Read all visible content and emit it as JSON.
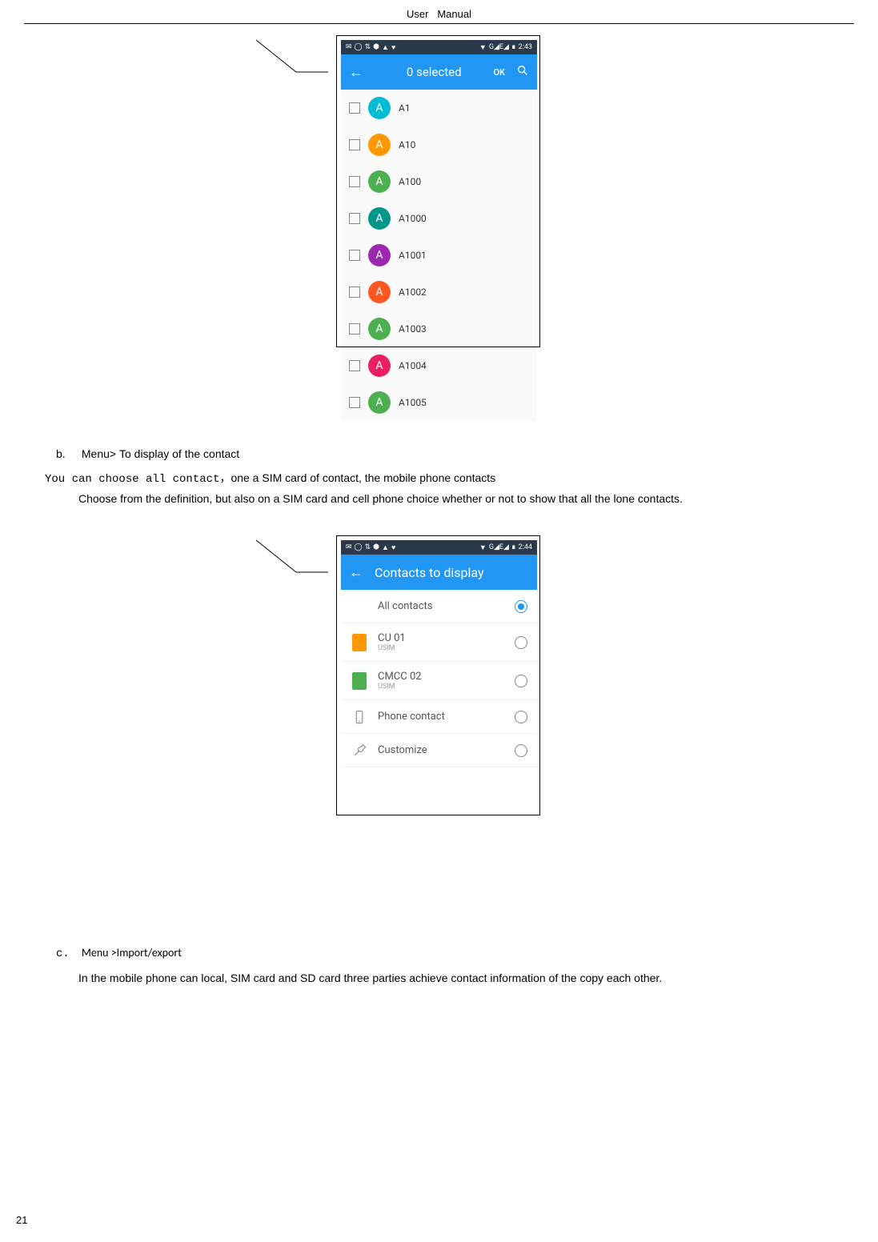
{
  "header": "User   Manual",
  "page_number": "21",
  "section_b": {
    "label": "b.",
    "title_prefix": "Menu> ",
    "title": "To display of the contact",
    "line1_mono": "You can choose all contact，",
    "line1_rest": "one a SIM card of contact, the mobile phone contacts",
    "line2": "Choose from the definition, but also on a SIM card and cell phone choice whether or not to show that all the lone contacts."
  },
  "section_c": {
    "label": "c.",
    "title": "Menu >Import/export",
    "body": "In the mobile phone can local, SIM card and SD card three parties achieve contact information of the copy each other."
  },
  "screenshot1": {
    "status_time": "2:43",
    "status_indicators": "G◢E◢",
    "app_bar_title": "0 selected",
    "ok_label": "OK",
    "contacts": [
      {
        "name": "A1",
        "color": "#00bcd4"
      },
      {
        "name": "A10",
        "color": "#ff9800"
      },
      {
        "name": "A100",
        "color": "#4caf50"
      },
      {
        "name": "A1000",
        "color": "#009688"
      },
      {
        "name": "A1001",
        "color": "#9c27b0"
      },
      {
        "name": "A1002",
        "color": "#ff5722"
      },
      {
        "name": "A1003",
        "color": "#4caf50"
      },
      {
        "name": "A1004",
        "color": "#e91e63"
      },
      {
        "name": "A1005",
        "color": "#4caf50"
      }
    ]
  },
  "screenshot2": {
    "status_time": "2:44",
    "status_indicators": "G◢E◢",
    "app_bar_title": "Contacts to display",
    "options": [
      {
        "label": "All contacts",
        "sublabel": "",
        "icon": "none",
        "selected": true
      },
      {
        "label": "CU 01",
        "sublabel": "USIM",
        "icon": "sim",
        "icon_color": "#ff9800",
        "selected": false
      },
      {
        "label": "CMCC 02",
        "sublabel": "USIM",
        "icon": "sim",
        "icon_color": "#4caf50",
        "selected": false
      },
      {
        "label": "Phone contact",
        "sublabel": "",
        "icon": "phone",
        "selected": false
      },
      {
        "label": "Customize",
        "sublabel": "",
        "icon": "wrench",
        "selected": false
      }
    ]
  }
}
